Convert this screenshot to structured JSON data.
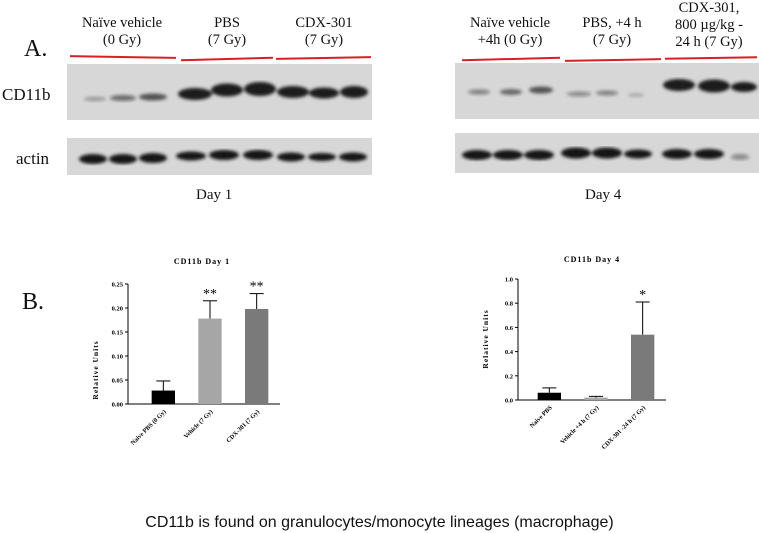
{
  "panel_a": {
    "label": "A.",
    "row_labels": {
      "cd11b": "CD11b",
      "actin": "actin"
    },
    "day1": {
      "day_label": "Day 1",
      "groups": [
        {
          "line1": "Naïve vehicle",
          "line2": "(0 Gy)"
        },
        {
          "line1": "PBS",
          "line2": "(7 Gy)"
        },
        {
          "line1": "CDX-301",
          "line2": "(7 Gy)"
        }
      ]
    },
    "day4": {
      "day_label": "Day 4",
      "groups": [
        {
          "line1": "Naïve vehicle",
          "line2": "+4h (0 Gy)"
        },
        {
          "line1": "PBS, +4 h",
          "line2": "(7 Gy)"
        },
        {
          "line1": "CDX-301,",
          "line2": "800 µg/kg  -",
          "line3": "24 h (7 Gy)"
        }
      ]
    }
  },
  "panel_b": {
    "label": "B."
  },
  "chart_data": [
    {
      "type": "bar",
      "title": "CD11b Day 1",
      "ylabel": "Relative Units",
      "ylim": [
        0,
        0.25
      ],
      "yticks": [
        "0.00",
        "0.05",
        "0.10",
        "0.15",
        "0.20",
        "0.25"
      ],
      "categories": [
        "Naive PBS (0 Gy)",
        "Vehicle (7 Gy)",
        "CDX-301 (7 Gy)"
      ],
      "values": [
        0.028,
        0.178,
        0.198
      ],
      "errors": [
        0.02,
        0.037,
        0.032
      ],
      "significance": [
        "",
        "**",
        "**"
      ],
      "colors": [
        "#000000",
        "#a6a6a6",
        "#7a7a7a"
      ]
    },
    {
      "type": "bar",
      "title": "CD11b Day 4",
      "ylabel": "Relative Units",
      "ylim": [
        0,
        1.0
      ],
      "yticks": [
        "0.0",
        "0.2",
        "0.4",
        "0.6",
        "0.8",
        "1.0"
      ],
      "categories": [
        "Naive PBS",
        "Vehicle +4 h (7 Gy)",
        "CDX-301 -24 h (7 Gy)"
      ],
      "values": [
        0.06,
        0.02,
        0.54
      ],
      "errors": [
        0.04,
        0.01,
        0.27
      ],
      "significance": [
        "",
        "",
        "*"
      ],
      "colors": [
        "#000000",
        "#a6a6a6",
        "#7a7a7a"
      ]
    }
  ],
  "caption": "CD11b is found on granulocytes/monocyte lineages (macrophage)"
}
